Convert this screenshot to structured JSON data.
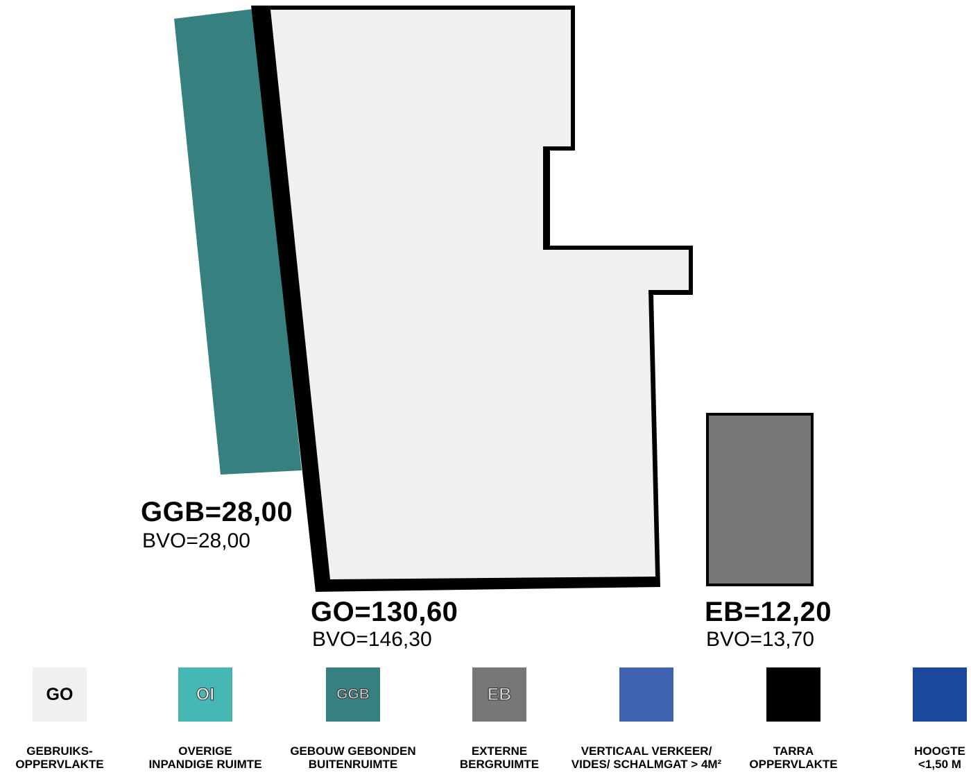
{
  "areas": {
    "ggb": {
      "label": "GGB=28,00",
      "bvo": "BVO=28,00",
      "color": "#368080"
    },
    "go": {
      "label": "GO=130,60",
      "bvo": "BVO=146,30",
      "color": "#f0f0f0"
    },
    "eb": {
      "label": "EB=12,20",
      "bvo": "BVO=13,70",
      "color": "#777777"
    }
  },
  "legend": [
    {
      "code": "GO",
      "line1": "GEBRUIKS-",
      "line2": "OPPERVLAKTE",
      "color": "#f0f0f0"
    },
    {
      "code": "OI",
      "line1": "OVERIGE",
      "line2": "INPANDIGE RUIMTE",
      "color": "#46b8b4"
    },
    {
      "code": "GGB",
      "line1": "GEBOUW GEBONDEN",
      "line2": "BUITENRUIMTE",
      "color": "#368080"
    },
    {
      "code": "EB",
      "line1": "EXTERNE",
      "line2": "BERGRUIMTE",
      "color": "#777777"
    },
    {
      "code": "",
      "line1": "VERTICAAL VERKEER/",
      "line2": "VIDES/ SCHALMGAT > 4M²",
      "color": "#3f63b0"
    },
    {
      "code": "",
      "line1": "TARRA",
      "line2": "OPPERVLAKTE",
      "color": "#000000"
    },
    {
      "code": "",
      "line1": "HOOGTE",
      "line2": "<1,50 M",
      "color": "#1b479c"
    }
  ]
}
